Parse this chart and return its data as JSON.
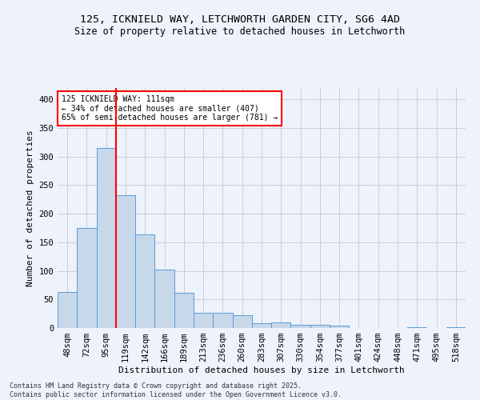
{
  "title1": "125, ICKNIELD WAY, LETCHWORTH GARDEN CITY, SG6 4AD",
  "title2": "Size of property relative to detached houses in Letchworth",
  "xlabel": "Distribution of detached houses by size in Letchworth",
  "ylabel": "Number of detached properties",
  "bar_color": "#c8d8eb",
  "bar_edge_color": "#5b9bd5",
  "bg_color": "#eef2fa",
  "grid_color": "#c0c8e0",
  "categories": [
    "48sqm",
    "72sqm",
    "95sqm",
    "119sqm",
    "142sqm",
    "166sqm",
    "189sqm",
    "213sqm",
    "236sqm",
    "260sqm",
    "283sqm",
    "307sqm",
    "330sqm",
    "354sqm",
    "377sqm",
    "401sqm",
    "424sqm",
    "448sqm",
    "471sqm",
    "495sqm",
    "518sqm"
  ],
  "values": [
    63,
    175,
    315,
    233,
    164,
    102,
    61,
    26,
    26,
    22,
    8,
    10,
    5,
    5,
    4,
    0,
    0,
    0,
    2,
    0,
    2
  ],
  "red_line_index": 3,
  "annotation_text": "125 ICKNIELD WAY: 111sqm\n← 34% of detached houses are smaller (407)\n65% of semi-detached houses are larger (781) →",
  "annotation_box_color": "white",
  "annotation_box_edge": "red",
  "copyright_text": "Contains HM Land Registry data © Crown copyright and database right 2025.\nContains public sector information licensed under the Open Government Licence v3.0.",
  "ylim": [
    0,
    420
  ],
  "yticks": [
    0,
    50,
    100,
    150,
    200,
    250,
    300,
    350,
    400
  ],
  "title1_fontsize": 9.5,
  "title2_fontsize": 8.5,
  "ylabel_fontsize": 8,
  "xlabel_fontsize": 8,
  "tick_fontsize": 7.5,
  "annot_fontsize": 7
}
